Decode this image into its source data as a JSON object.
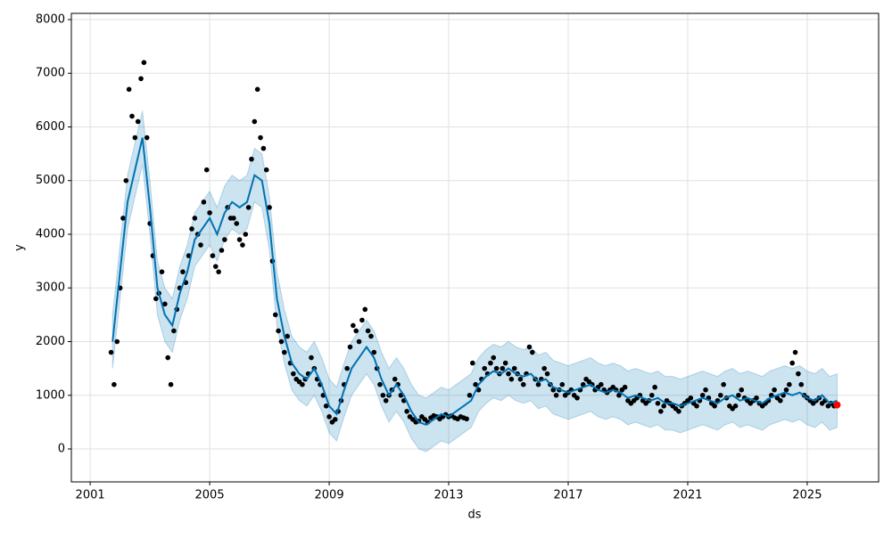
{
  "chart_data": {
    "type": "forecast",
    "xlabel": "ds",
    "ylabel": "y",
    "xlim": [
      2000.37,
      2027.39
    ],
    "ylim": [
      -614,
      8116
    ],
    "xticks": [
      2001,
      2005,
      2009,
      2013,
      2017,
      2021,
      2025
    ],
    "yticks": [
      0,
      1000,
      2000,
      3000,
      4000,
      5000,
      6000,
      7000,
      8000
    ],
    "grid": true,
    "observed": {
      "color": "#000000",
      "x": [
        2001.7,
        2001.8,
        2001.9,
        2002.0,
        2002.1,
        2002.2,
        2002.3,
        2002.4,
        2002.5,
        2002.6,
        2002.7,
        2002.8,
        2002.9,
        2003.0,
        2003.1,
        2003.2,
        2003.3,
        2003.4,
        2003.5,
        2003.6,
        2003.7,
        2003.8,
        2003.9,
        2004.0,
        2004.1,
        2004.2,
        2004.3,
        2004.4,
        2004.5,
        2004.6,
        2004.7,
        2004.8,
        2004.9,
        2005.0,
        2005.1,
        2005.2,
        2005.3,
        2005.4,
        2005.5,
        2005.6,
        2005.7,
        2005.8,
        2005.9,
        2006.0,
        2006.1,
        2006.2,
        2006.3,
        2006.4,
        2006.5,
        2006.6,
        2006.7,
        2006.8,
        2006.9,
        2007.0,
        2007.1,
        2007.2,
        2007.3,
        2007.4,
        2007.5,
        2007.6,
        2007.7,
        2007.8,
        2007.9,
        2008.0,
        2008.1,
        2008.2,
        2008.3,
        2008.4,
        2008.5,
        2008.6,
        2008.7,
        2008.8,
        2008.9,
        2009.0,
        2009.1,
        2009.2,
        2009.3,
        2009.4,
        2009.5,
        2009.6,
        2009.7,
        2009.8,
        2009.9,
        2010.0,
        2010.1,
        2010.2,
        2010.3,
        2010.4,
        2010.5,
        2010.6,
        2010.7,
        2010.8,
        2010.9,
        2011.0,
        2011.1,
        2011.2,
        2011.3,
        2011.4,
        2011.5,
        2011.6,
        2011.7,
        2011.8,
        2011.9,
        2012.0,
        2012.1,
        2012.2,
        2012.3,
        2012.4,
        2012.5,
        2012.6,
        2012.7,
        2012.8,
        2012.9,
        2013.0,
        2013.1,
        2013.2,
        2013.3,
        2013.4,
        2013.5,
        2013.6,
        2013.7,
        2013.8,
        2013.9,
        2014.0,
        2014.1,
        2014.2,
        2014.3,
        2014.4,
        2014.5,
        2014.6,
        2014.7,
        2014.8,
        2014.9,
        2015.0,
        2015.1,
        2015.2,
        2015.3,
        2015.4,
        2015.5,
        2015.6,
        2015.7,
        2015.8,
        2015.9,
        2016.0,
        2016.1,
        2016.2,
        2016.3,
        2016.4,
        2016.5,
        2016.6,
        2016.7,
        2016.8,
        2016.9,
        2017.0,
        2017.1,
        2017.2,
        2017.3,
        2017.4,
        2017.5,
        2017.6,
        2017.7,
        2017.8,
        2017.9,
        2018.0,
        2018.1,
        2018.2,
        2018.3,
        2018.4,
        2018.5,
        2018.6,
        2018.7,
        2018.8,
        2018.9,
        2019.0,
        2019.1,
        2019.2,
        2019.3,
        2019.4,
        2019.5,
        2019.6,
        2019.7,
        2019.8,
        2019.9,
        2020.0,
        2020.1,
        2020.2,
        2020.3,
        2020.4,
        2020.5,
        2020.6,
        2020.7,
        2020.8,
        2020.9,
        2021.0,
        2021.1,
        2021.2,
        2021.3,
        2021.4,
        2021.5,
        2021.6,
        2021.7,
        2021.8,
        2021.9,
        2022.0,
        2022.1,
        2022.2,
        2022.3,
        2022.4,
        2022.5,
        2022.6,
        2022.7,
        2022.8,
        2022.9,
        2023.0,
        2023.1,
        2023.2,
        2023.3,
        2023.4,
        2023.5,
        2023.6,
        2023.7,
        2023.8,
        2023.9,
        2024.0,
        2024.1,
        2024.2,
        2024.3,
        2024.4,
        2024.5,
        2024.6,
        2024.7,
        2024.8,
        2024.9,
        2025.0,
        2025.1,
        2025.2,
        2025.3,
        2025.4,
        2025.5,
        2025.6,
        2025.7,
        2025.8,
        2025.9
      ],
      "values": [
        1800,
        1200,
        2000,
        3000,
        4300,
        5000,
        6700,
        6200,
        5800,
        6100,
        6900,
        7200,
        5800,
        4200,
        3600,
        2800,
        2900,
        3300,
        2700,
        1700,
        1200,
        2200,
        2600,
        3000,
        3300,
        3100,
        3600,
        4100,
        4300,
        4000,
        3800,
        4600,
        5200,
        4400,
        3600,
        3400,
        3300,
        3700,
        3900,
        4500,
        4300,
        4300,
        4200,
        3900,
        3800,
        4000,
        4500,
        5400,
        6100,
        6700,
        5800,
        5600,
        5200,
        4500,
        3500,
        2500,
        2200,
        2000,
        1800,
        2100,
        1600,
        1400,
        1300,
        1250,
        1200,
        1300,
        1400,
        1700,
        1500,
        1300,
        1200,
        1000,
        800,
        600,
        500,
        550,
        700,
        900,
        1200,
        1500,
        1900,
        2300,
        2200,
        2000,
        2400,
        2600,
        2200,
        2100,
        1800,
        1500,
        1200,
        1000,
        900,
        1000,
        1100,
        1300,
        1200,
        1000,
        900,
        700,
        600,
        550,
        500,
        520,
        600,
        550,
        500,
        580,
        620,
        600,
        560,
        600,
        640,
        600,
        620,
        580,
        560,
        600,
        580,
        560,
        1000,
        1600,
        1200,
        1100,
        1300,
        1500,
        1400,
        1600,
        1700,
        1500,
        1400,
        1500,
        1600,
        1400,
        1300,
        1500,
        1400,
        1300,
        1200,
        1400,
        1900,
        1800,
        1300,
        1200,
        1300,
        1500,
        1400,
        1200,
        1100,
        1000,
        1100,
        1200,
        1000,
        1050,
        1100,
        1000,
        950,
        1100,
        1200,
        1300,
        1250,
        1200,
        1100,
        1150,
        1200,
        1100,
        1050,
        1100,
        1150,
        1100,
        1000,
        1100,
        1150,
        900,
        850,
        900,
        950,
        1000,
        900,
        850,
        900,
        1000,
        1150,
        850,
        700,
        800,
        900,
        850,
        800,
        750,
        700,
        800,
        850,
        900,
        950,
        850,
        800,
        900,
        1000,
        1100,
        950,
        850,
        800,
        900,
        1000,
        1200,
        950,
        800,
        750,
        800,
        1000,
        1100,
        950,
        900,
        850,
        900,
        950,
        850,
        800,
        850,
        900,
        1000,
        1100,
        950,
        900,
        1000,
        1100,
        1200,
        1600,
        1800,
        1400,
        1200,
        1000,
        950,
        900,
        850,
        900,
        950,
        850,
        900,
        800,
        850,
        800
      ]
    },
    "forecast": {
      "color": "#0072B2",
      "band_color": "#0072B2",
      "x": [
        2001.75,
        2002.0,
        2002.25,
        2002.5,
        2002.75,
        2003.0,
        2003.25,
        2003.5,
        2003.75,
        2004.0,
        2004.25,
        2004.5,
        2004.75,
        2005.0,
        2005.25,
        2005.5,
        2005.75,
        2006.0,
        2006.25,
        2006.5,
        2006.75,
        2007.0,
        2007.25,
        2007.5,
        2007.75,
        2008.0,
        2008.25,
        2008.5,
        2008.75,
        2009.0,
        2009.25,
        2009.5,
        2009.75,
        2010.0,
        2010.25,
        2010.5,
        2010.75,
        2011.0,
        2011.25,
        2011.5,
        2011.75,
        2012.0,
        2012.25,
        2012.5,
        2012.75,
        2013.0,
        2013.25,
        2013.5,
        2013.75,
        2014.0,
        2014.25,
        2014.5,
        2014.75,
        2015.0,
        2015.25,
        2015.5,
        2015.75,
        2016.0,
        2016.25,
        2016.5,
        2016.75,
        2017.0,
        2017.25,
        2017.5,
        2017.75,
        2018.0,
        2018.25,
        2018.5,
        2018.75,
        2019.0,
        2019.25,
        2019.5,
        2019.75,
        2020.0,
        2020.25,
        2020.5,
        2020.75,
        2021.0,
        2021.25,
        2021.5,
        2021.75,
        2022.0,
        2022.25,
        2022.5,
        2022.75,
        2023.0,
        2023.25,
        2023.5,
        2023.75,
        2024.0,
        2024.25,
        2024.5,
        2024.75,
        2025.0,
        2025.25,
        2025.5,
        2025.75,
        2026.0
      ],
      "values": [
        2000,
        3300,
        4600,
        5200,
        5800,
        4500,
        3000,
        2500,
        2300,
        2900,
        3300,
        3900,
        4100,
        4300,
        4000,
        4400,
        4600,
        4500,
        4600,
        5100,
        5000,
        4200,
        2800,
        2100,
        1600,
        1400,
        1300,
        1500,
        1200,
        800,
        650,
        1100,
        1500,
        1700,
        1900,
        1700,
        1300,
        1000,
        1200,
        1000,
        700,
        500,
        450,
        550,
        650,
        600,
        700,
        800,
        900,
        1200,
        1350,
        1450,
        1400,
        1500,
        1400,
        1350,
        1400,
        1250,
        1300,
        1150,
        1100,
        1050,
        1100,
        1150,
        1200,
        1100,
        1050,
        1100,
        1050,
        950,
        1000,
        950,
        900,
        950,
        850,
        850,
        800,
        850,
        900,
        950,
        900,
        850,
        950,
        1000,
        900,
        950,
        900,
        850,
        950,
        1000,
        1050,
        1000,
        1050,
        950,
        900,
        1000,
        850,
        900
      ],
      "upper": [
        2500,
        3800,
        5100,
        5700,
        6300,
        5000,
        3500,
        3000,
        2800,
        3400,
        3800,
        4400,
        4600,
        4800,
        4500,
        4900,
        5100,
        5000,
        5100,
        5600,
        5500,
        4700,
        3300,
        2600,
        2100,
        1900,
        1800,
        2000,
        1700,
        1300,
        1150,
        1600,
        2000,
        2200,
        2400,
        2200,
        1800,
        1500,
        1700,
        1500,
        1200,
        1000,
        950,
        1050,
        1150,
        1100,
        1200,
        1300,
        1400,
        1700,
        1850,
        1950,
        1900,
        2000,
        1900,
        1850,
        1900,
        1750,
        1800,
        1650,
        1600,
        1550,
        1600,
        1650,
        1700,
        1600,
        1550,
        1600,
        1550,
        1450,
        1500,
        1450,
        1400,
        1450,
        1350,
        1350,
        1300,
        1350,
        1400,
        1450,
        1400,
        1350,
        1450,
        1500,
        1400,
        1450,
        1400,
        1350,
        1450,
        1500,
        1550,
        1500,
        1550,
        1450,
        1400,
        1500,
        1350,
        1400
      ],
      "lower": [
        1500,
        2800,
        4100,
        4700,
        5300,
        4000,
        2500,
        2000,
        1800,
        2400,
        2800,
        3400,
        3600,
        3800,
        3500,
        3900,
        4100,
        4000,
        4100,
        4600,
        4500,
        3700,
        2300,
        1600,
        1100,
        900,
        800,
        1000,
        700,
        300,
        150,
        600,
        1000,
        1200,
        1400,
        1200,
        800,
        500,
        700,
        500,
        200,
        0,
        -50,
        50,
        150,
        100,
        200,
        300,
        400,
        700,
        850,
        950,
        900,
        1000,
        900,
        850,
        900,
        750,
        800,
        650,
        600,
        550,
        600,
        650,
        700,
        600,
        550,
        600,
        550,
        450,
        500,
        450,
        400,
        450,
        350,
        350,
        300,
        350,
        400,
        450,
        400,
        350,
        450,
        500,
        400,
        450,
        400,
        350,
        450,
        500,
        550,
        500,
        550,
        450,
        400,
        500,
        350,
        400
      ]
    },
    "future_point": {
      "color": "#ff0000",
      "x": 2026.0,
      "value": 820
    }
  }
}
